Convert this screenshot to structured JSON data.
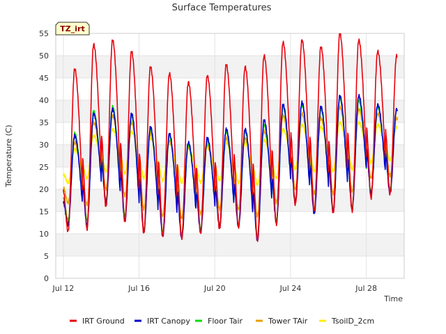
{
  "chart_data": {
    "type": "line",
    "title": "Surface Temperatures",
    "xlabel": "Time",
    "ylabel": "Temperature (C)",
    "badge": "TZ_irt",
    "xlim": [
      11.6,
      30.0
    ],
    "ylim": [
      0,
      55
    ],
    "yticks": [
      0,
      5,
      10,
      15,
      20,
      25,
      30,
      35,
      40,
      45,
      50,
      55
    ],
    "xticks": [
      {
        "value": 12,
        "label": "Jul 12"
      },
      {
        "value": 16,
        "label": "Jul 16"
      },
      {
        "value": 20,
        "label": "Jul 20"
      },
      {
        "value": 24,
        "label": "Jul 24"
      },
      {
        "value": 28,
        "label": "Jul 28"
      }
    ],
    "grid": true,
    "legend_position": "bottom",
    "day_start": 12.0,
    "series": [
      {
        "name": "IRT Ground",
        "color": "#e8000b",
        "daily_min": [
          10.5,
          11.0,
          16.0,
          12.5,
          10.0,
          9.5,
          9.0,
          10.0,
          11.0,
          11.5,
          8.5,
          12.0,
          16.5,
          15.0,
          14.5,
          15.0,
          18.0,
          19.0
        ],
        "daily_max": [
          47.0,
          52.5,
          53.5,
          51.0,
          47.5,
          46.0,
          44.0,
          45.5,
          48.0,
          47.5,
          50.0,
          53.0,
          53.5,
          52.0,
          55.0,
          53.5,
          51.0,
          50.0
        ]
      },
      {
        "name": "IRT Canopy",
        "color": "#0000cc",
        "daily_min": [
          12.0,
          12.0,
          17.0,
          13.0,
          10.5,
          9.5,
          9.0,
          10.5,
          11.5,
          11.5,
          8.5,
          12.5,
          17.0,
          14.5,
          15.0,
          15.5,
          19.0,
          19.0
        ],
        "daily_max": [
          32.0,
          37.0,
          38.0,
          37.0,
          34.0,
          32.5,
          30.5,
          31.5,
          33.5,
          33.5,
          35.5,
          39.0,
          39.5,
          38.5,
          41.0,
          41.0,
          39.0,
          38.0
        ]
      },
      {
        "name": "Floor Tair",
        "color": "#00dd00",
        "daily_min": [
          13.0,
          13.0,
          17.5,
          14.0,
          11.0,
          10.5,
          10.0,
          11.0,
          12.0,
          12.0,
          9.5,
          13.0,
          17.5,
          15.5,
          15.5,
          16.0,
          19.5,
          20.0
        ],
        "daily_max": [
          32.5,
          37.5,
          38.5,
          36.5,
          33.5,
          32.0,
          30.0,
          31.0,
          33.0,
          33.0,
          34.5,
          38.5,
          39.0,
          38.0,
          40.5,
          40.0,
          38.5,
          38.0
        ]
      },
      {
        "name": "Tower TAir",
        "color": "#e8a000",
        "daily_min": [
          17.0,
          16.5,
          20.0,
          18.5,
          15.5,
          14.0,
          13.5,
          14.5,
          15.5,
          15.5,
          14.0,
          17.0,
          20.0,
          19.0,
          19.0,
          19.5,
          22.5,
          23.0
        ],
        "daily_max": [
          30.5,
          35.0,
          36.5,
          35.0,
          32.5,
          31.0,
          29.5,
          30.0,
          31.5,
          31.5,
          33.0,
          36.5,
          37.0,
          36.0,
          38.5,
          38.0,
          37.0,
          36.0
        ]
      },
      {
        "name": "TsoilD_2cm",
        "color": "#ffee00",
        "daily_min": [
          21.5,
          22.5,
          24.0,
          23.5,
          22.5,
          22.0,
          21.5,
          21.5,
          22.0,
          21.5,
          21.0,
          22.5,
          24.5,
          24.0,
          24.0,
          24.5,
          26.0,
          26.5
        ],
        "daily_max": [
          29.0,
          32.0,
          33.5,
          33.0,
          31.5,
          30.5,
          29.5,
          29.5,
          30.5,
          30.5,
          31.0,
          33.5,
          34.5,
          34.0,
          35.0,
          35.0,
          34.5,
          34.0
        ]
      }
    ]
  }
}
